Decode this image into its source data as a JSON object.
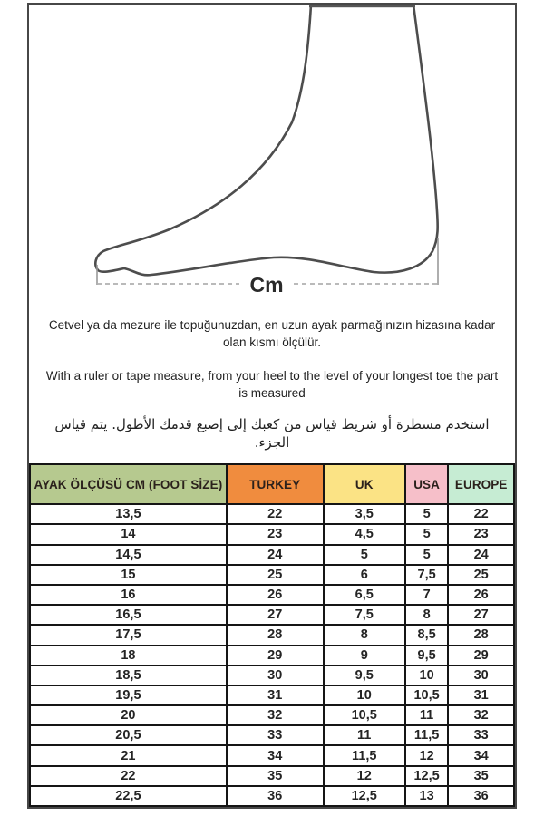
{
  "diagram": {
    "measure_label": "Cm",
    "description": "foot-side-profile-outline"
  },
  "instructions": {
    "turkish": "Cetvel ya da mezure ile topuğunuzdan, en uzun ayak parmağınızın hizasına kadar olan kısmı ölçülür.",
    "english": "With a ruler or tape measure, from your heel to the level of your longest toe the part is measured",
    "arabic": "استخدم مسطرة أو شريط قياس من كعبك إلى إصبع قدمك الأطول.  يتم قياس الجزء."
  },
  "size_table": {
    "columns": [
      {
        "label": "AYAK ÖLÇÜSÜ CM (FOOT SİZE)",
        "color": "#b6c98f"
      },
      {
        "label": "TURKEY",
        "color": "#f08c3e"
      },
      {
        "label": "UK",
        "color": "#fbe385"
      },
      {
        "label": "USA",
        "color": "#f6bfc9"
      },
      {
        "label": "EUROPE",
        "color": "#c6ecd3"
      }
    ],
    "rows": [
      [
        "13,5",
        "22",
        "3,5",
        "5",
        "22"
      ],
      [
        "14",
        "23",
        "4,5",
        "5",
        "23"
      ],
      [
        "14,5",
        "24",
        "5",
        "5",
        "24"
      ],
      [
        "15",
        "25",
        "6",
        "7,5",
        "25"
      ],
      [
        "16",
        "26",
        "6,5",
        "7",
        "26"
      ],
      [
        "16,5",
        "27",
        "7,5",
        "8",
        "27"
      ],
      [
        "17,5",
        "28",
        "8",
        "8,5",
        "28"
      ],
      [
        "18",
        "29",
        "9",
        "9,5",
        "29"
      ],
      [
        "18,5",
        "30",
        "9,5",
        "10",
        "30"
      ],
      [
        "19,5",
        "31",
        "10",
        "10,5",
        "31"
      ],
      [
        "20",
        "32",
        "10,5",
        "11",
        "32"
      ],
      [
        "20,5",
        "33",
        "11",
        "11,5",
        "33"
      ],
      [
        "21",
        "34",
        "11,5",
        "12",
        "34"
      ],
      [
        "22",
        "35",
        "12",
        "12,5",
        "35"
      ],
      [
        "22,5",
        "36",
        "12,5",
        "13",
        "36"
      ]
    ]
  },
  "colors": {
    "frame_border": "#474747",
    "table_border": "#151515",
    "foot_outline": "#4d4d4d",
    "dash_line": "#b0b0b0"
  }
}
